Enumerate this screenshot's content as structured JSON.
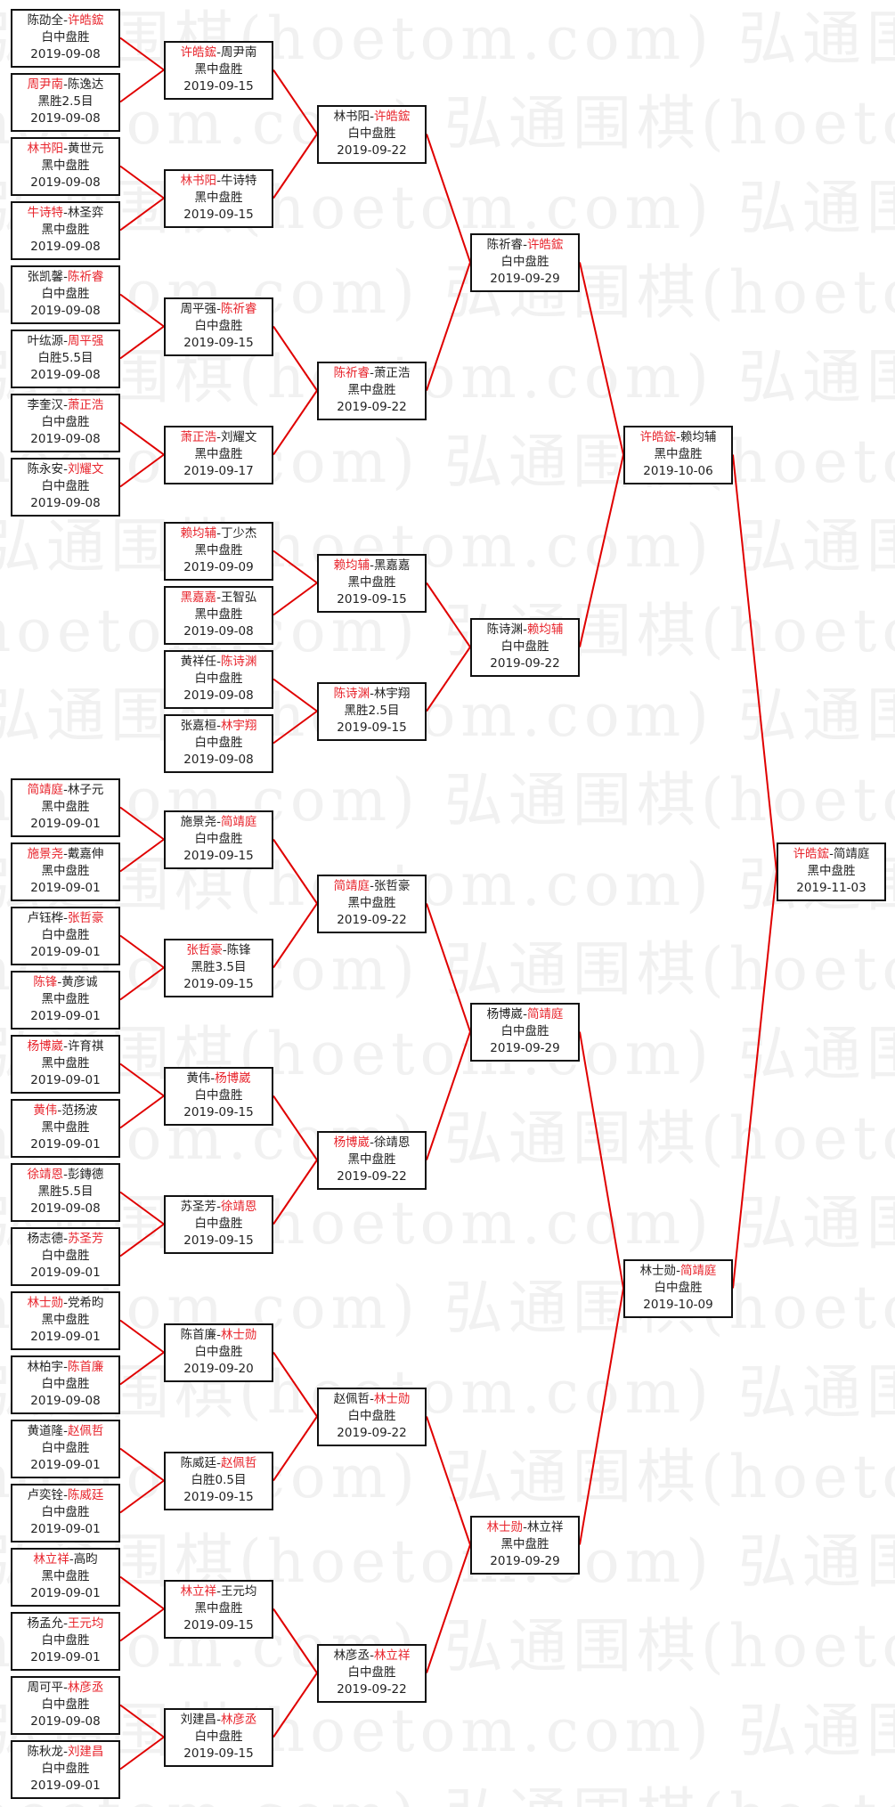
{
  "watermark": "弘通围棋(hoetom.com)",
  "separator": "-",
  "colors": {
    "winner": "#e8242c",
    "connector": "#e00000",
    "border": "#111111"
  },
  "rounds": [
    [
      {
        "slot": 0,
        "left": "陈劭全",
        "right": "许皓鋐",
        "winner": "right",
        "result": "白中盘胜",
        "date": "2019-09-08"
      },
      {
        "slot": 1,
        "left": "周尹南",
        "right": "陈逸达",
        "winner": "left",
        "result": "黑胜2.5目",
        "date": "2019-09-08"
      },
      {
        "slot": 2,
        "left": "林书阳",
        "right": "黄世元",
        "winner": "left",
        "result": "黑中盘胜",
        "date": "2019-09-08"
      },
      {
        "slot": 3,
        "left": "牛诗特",
        "right": "林圣弈",
        "winner": "left",
        "result": "黑中盘胜",
        "date": "2019-09-08"
      },
      {
        "slot": 4,
        "left": "张凯馨",
        "right": "陈祈睿",
        "winner": "right",
        "result": "白中盘胜",
        "date": "2019-09-08"
      },
      {
        "slot": 5,
        "left": "叶纮源",
        "right": "周平强",
        "winner": "right",
        "result": "白胜5.5目",
        "date": "2019-09-08"
      },
      {
        "slot": 6,
        "left": "李奎汉",
        "right": "萧正浩",
        "winner": "right",
        "result": "白中盘胜",
        "date": "2019-09-08"
      },
      {
        "slot": 7,
        "left": "陈永安",
        "right": "刘耀文",
        "winner": "right",
        "result": "白中盘胜",
        "date": "2019-09-08"
      },
      {
        "slot": 12,
        "left": "简靖庭",
        "right": "林子元",
        "winner": "left",
        "result": "黑中盘胜",
        "date": "2019-09-01"
      },
      {
        "slot": 13,
        "left": "施景尧",
        "right": "戴嘉伸",
        "winner": "left",
        "result": "黑中盘胜",
        "date": "2019-09-01"
      },
      {
        "slot": 14,
        "left": "卢钰桦",
        "right": "张哲豪",
        "winner": "right",
        "result": "白中盘胜",
        "date": "2019-09-01"
      },
      {
        "slot": 15,
        "left": "陈锋",
        "right": "黄彦诚",
        "winner": "left",
        "result": "黑中盘胜",
        "date": "2019-09-01"
      },
      {
        "slot": 16,
        "left": "杨博崴",
        "right": "许育祺",
        "winner": "left",
        "result": "黑中盘胜",
        "date": "2019-09-01"
      },
      {
        "slot": 17,
        "left": "黄伟",
        "right": "范扬波",
        "winner": "left",
        "result": "黑中盘胜",
        "date": "2019-09-01"
      },
      {
        "slot": 18,
        "left": "徐靖恩",
        "right": "彭鏄德",
        "winner": "left",
        "result": "黑胜5.5目",
        "date": "2019-09-08"
      },
      {
        "slot": 19,
        "left": "杨志德",
        "right": "苏圣芳",
        "winner": "right",
        "result": "白中盘胜",
        "date": "2019-09-01"
      },
      {
        "slot": 20,
        "left": "林士勋",
        "right": "党希昀",
        "winner": "left",
        "result": "黑中盘胜",
        "date": "2019-09-01"
      },
      {
        "slot": 21,
        "left": "林柏宇",
        "right": "陈首廉",
        "winner": "right",
        "result": "白中盘胜",
        "date": "2019-09-08"
      },
      {
        "slot": 22,
        "left": "黄道隆",
        "right": "赵佩哲",
        "winner": "right",
        "result": "白中盘胜",
        "date": "2019-09-01"
      },
      {
        "slot": 23,
        "left": "卢奕铨",
        "right": "陈威廷",
        "winner": "right",
        "result": "白中盘胜",
        "date": "2019-09-01"
      },
      {
        "slot": 24,
        "left": "林立祥",
        "right": "高昀",
        "winner": "left",
        "result": "黑中盘胜",
        "date": "2019-09-01"
      },
      {
        "slot": 25,
        "left": "杨孟允",
        "right": "王元均",
        "winner": "right",
        "result": "白中盘胜",
        "date": "2019-09-01"
      },
      {
        "slot": 26,
        "left": "周可平",
        "right": "林彦丞",
        "winner": "right",
        "result": "白中盘胜",
        "date": "2019-09-08"
      },
      {
        "slot": 27,
        "left": "陈秋龙",
        "right": "刘建昌",
        "winner": "right",
        "result": "白中盘胜",
        "date": "2019-09-01"
      }
    ],
    [
      {
        "slot": 0.5,
        "left": "许皓鋐",
        "right": "周尹南",
        "winner": "left",
        "result": "黑中盘胜",
        "date": "2019-09-15"
      },
      {
        "slot": 2.5,
        "left": "林书阳",
        "right": "牛诗特",
        "winner": "left",
        "result": "黑中盘胜",
        "date": "2019-09-15"
      },
      {
        "slot": 4.5,
        "left": "周平强",
        "right": "陈祈睿",
        "winner": "right",
        "result": "白中盘胜",
        "date": "2019-09-15"
      },
      {
        "slot": 6.5,
        "left": "萧正浩",
        "right": "刘耀文",
        "winner": "left",
        "result": "黑中盘胜",
        "date": "2019-09-17"
      },
      {
        "slot": 8,
        "left": "赖均辅",
        "right": "丁少杰",
        "winner": "left",
        "result": "黑中盘胜",
        "date": "2019-09-09"
      },
      {
        "slot": 9,
        "left": "黑嘉嘉",
        "right": "王智弘",
        "winner": "left",
        "result": "黑中盘胜",
        "date": "2019-09-08"
      },
      {
        "slot": 10,
        "left": "黄祥任",
        "right": "陈诗渊",
        "winner": "right",
        "result": "白中盘胜",
        "date": "2019-09-08"
      },
      {
        "slot": 11,
        "left": "张嘉桓",
        "right": "林宇翔",
        "winner": "right",
        "result": "白中盘胜",
        "date": "2019-09-08"
      },
      {
        "slot": 12.5,
        "left": "施景尧",
        "right": "简靖庭",
        "winner": "right",
        "result": "白中盘胜",
        "date": "2019-09-15"
      },
      {
        "slot": 14.5,
        "left": "张哲豪",
        "right": "陈锋",
        "winner": "left",
        "result": "黑胜3.5目",
        "date": "2019-09-15"
      },
      {
        "slot": 16.5,
        "left": "黄伟",
        "right": "杨博崴",
        "winner": "right",
        "result": "白中盘胜",
        "date": "2019-09-15"
      },
      {
        "slot": 18.5,
        "left": "苏圣芳",
        "right": "徐靖恩",
        "winner": "right",
        "result": "白中盘胜",
        "date": "2019-09-15"
      },
      {
        "slot": 20.5,
        "left": "陈首廉",
        "right": "林士勋",
        "winner": "right",
        "result": "白中盘胜",
        "date": "2019-09-20"
      },
      {
        "slot": 22.5,
        "left": "陈威廷",
        "right": "赵佩哲",
        "winner": "right",
        "result": "白胜0.5目",
        "date": "2019-09-15"
      },
      {
        "slot": 24.5,
        "left": "林立祥",
        "right": "王元均",
        "winner": "left",
        "result": "黑中盘胜",
        "date": "2019-09-15"
      },
      {
        "slot": 26.5,
        "left": "刘建昌",
        "right": "林彦丞",
        "winner": "right",
        "result": "白中盘胜",
        "date": "2019-09-15"
      }
    ],
    [
      {
        "slot": 1.5,
        "left": "林书阳",
        "right": "许皓鋐",
        "winner": "right",
        "result": "白中盘胜",
        "date": "2019-09-22"
      },
      {
        "slot": 5.5,
        "left": "陈祈睿",
        "right": "萧正浩",
        "winner": "left",
        "result": "黑中盘胜",
        "date": "2019-09-22"
      },
      {
        "slot": 8.5,
        "left": "赖均辅",
        "right": "黑嘉嘉",
        "winner": "left",
        "result": "黑中盘胜",
        "date": "2019-09-15"
      },
      {
        "slot": 10.5,
        "left": "陈诗渊",
        "right": "林宇翔",
        "winner": "left",
        "result": "黑胜2.5目",
        "date": "2019-09-15"
      },
      {
        "slot": 13.5,
        "left": "简靖庭",
        "right": "张哲豪",
        "winner": "left",
        "result": "黑中盘胜",
        "date": "2019-09-22"
      },
      {
        "slot": 17.5,
        "left": "杨博崴",
        "right": "徐靖恩",
        "winner": "left",
        "result": "黑中盘胜",
        "date": "2019-09-22"
      },
      {
        "slot": 21.5,
        "left": "赵佩哲",
        "right": "林士勋",
        "winner": "right",
        "result": "白中盘胜",
        "date": "2019-09-22"
      },
      {
        "slot": 25.5,
        "left": "林彦丞",
        "right": "林立祥",
        "winner": "right",
        "result": "白中盘胜",
        "date": "2019-09-22"
      }
    ],
    [
      {
        "slot": 3.5,
        "left": "陈祈睿",
        "right": "许皓鋐",
        "winner": "right",
        "result": "白中盘胜",
        "date": "2019-09-29"
      },
      {
        "slot": 9.5,
        "left": "陈诗渊",
        "right": "赖均辅",
        "winner": "right",
        "result": "白中盘胜",
        "date": "2019-09-22"
      },
      {
        "slot": 15.5,
        "left": "杨博崴",
        "right": "简靖庭",
        "winner": "right",
        "result": "白中盘胜",
        "date": "2019-09-29"
      },
      {
        "slot": 23.5,
        "left": "林士勋",
        "right": "林立祥",
        "winner": "left",
        "result": "黑中盘胜",
        "date": "2019-09-29"
      }
    ],
    [
      {
        "slot": 6.5,
        "left": "许皓鋐",
        "right": "赖均辅",
        "winner": "left",
        "result": "黑中盘胜",
        "date": "2019-10-06"
      },
      {
        "slot": 19.5,
        "left": "林士勋",
        "right": "简靖庭",
        "winner": "right",
        "result": "白中盘胜",
        "date": "2019-10-09"
      }
    ],
    [
      {
        "slot": 13,
        "left": "许皓鋐",
        "right": "简靖庭",
        "winner": "left",
        "result": "黑中盘胜",
        "date": "2019-11-03"
      }
    ]
  ]
}
